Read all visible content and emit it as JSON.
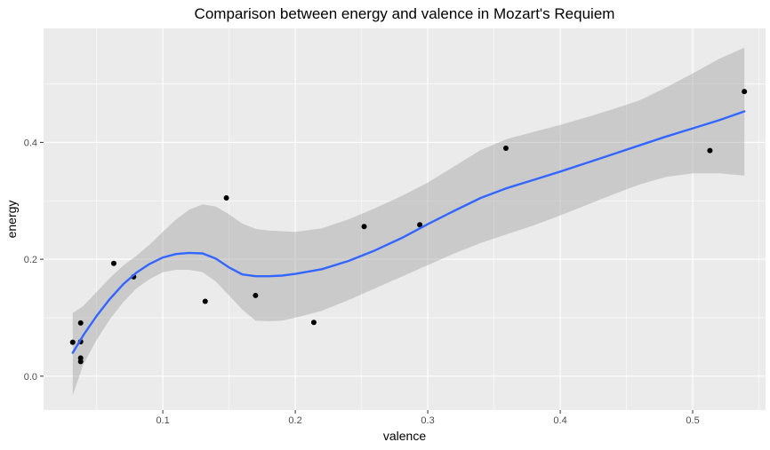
{
  "chart_data": {
    "type": "scatter",
    "title": "Comparison between energy and valence in Mozart's Requiem",
    "xlabel": "valence",
    "ylabel": "energy",
    "xlim": [
      0.01,
      0.555
    ],
    "ylim": [
      -0.058,
      0.595
    ],
    "x_ticks": [
      0.1,
      0.2,
      0.3,
      0.4,
      0.5
    ],
    "x_tick_labels": [
      "0.1",
      "0.2",
      "0.3",
      "0.4",
      "0.5"
    ],
    "y_ticks": [
      0.0,
      0.2,
      0.4
    ],
    "y_tick_labels": [
      "0.0",
      "0.2",
      "0.4"
    ],
    "grid": true,
    "colors": {
      "panel_background": "#ebebeb",
      "grid": "#ffffff",
      "points": "#000000",
      "smooth_line": "#3366ff",
      "confidence_band": "#999999"
    },
    "points": [
      {
        "x": 0.032,
        "y": 0.058
      },
      {
        "x": 0.038,
        "y": 0.091
      },
      {
        "x": 0.038,
        "y": 0.059
      },
      {
        "x": 0.038,
        "y": 0.031
      },
      {
        "x": 0.038,
        "y": 0.025
      },
      {
        "x": 0.063,
        "y": 0.193
      },
      {
        "x": 0.078,
        "y": 0.17
      },
      {
        "x": 0.132,
        "y": 0.128
      },
      {
        "x": 0.148,
        "y": 0.305
      },
      {
        "x": 0.17,
        "y": 0.138
      },
      {
        "x": 0.214,
        "y": 0.092
      },
      {
        "x": 0.252,
        "y": 0.256
      },
      {
        "x": 0.294,
        "y": 0.259
      },
      {
        "x": 0.359,
        "y": 0.39
      },
      {
        "x": 0.513,
        "y": 0.386
      },
      {
        "x": 0.539,
        "y": 0.487
      }
    ],
    "smooth": {
      "x": [
        0.032,
        0.04,
        0.05,
        0.06,
        0.07,
        0.08,
        0.09,
        0.1,
        0.11,
        0.12,
        0.13,
        0.14,
        0.15,
        0.16,
        0.17,
        0.18,
        0.19,
        0.2,
        0.22,
        0.24,
        0.26,
        0.28,
        0.3,
        0.32,
        0.34,
        0.36,
        0.38,
        0.4,
        0.42,
        0.44,
        0.46,
        0.48,
        0.5,
        0.52,
        0.539
      ],
      "y": [
        0.04,
        0.07,
        0.103,
        0.132,
        0.157,
        0.177,
        0.192,
        0.203,
        0.209,
        0.211,
        0.21,
        0.201,
        0.186,
        0.174,
        0.171,
        0.171,
        0.172,
        0.175,
        0.183,
        0.197,
        0.215,
        0.236,
        0.26,
        0.283,
        0.305,
        0.322,
        0.336,
        0.35,
        0.365,
        0.38,
        0.395,
        0.41,
        0.424,
        0.438,
        0.453
      ],
      "lower": [
        -0.033,
        0.02,
        0.062,
        0.097,
        0.126,
        0.15,
        0.166,
        0.178,
        0.182,
        0.182,
        0.178,
        0.162,
        0.138,
        0.114,
        0.095,
        0.094,
        0.095,
        0.1,
        0.112,
        0.13,
        0.15,
        0.17,
        0.19,
        0.21,
        0.228,
        0.243,
        0.258,
        0.275,
        0.293,
        0.311,
        0.328,
        0.341,
        0.347,
        0.347,
        0.343
      ],
      "upper": [
        0.108,
        0.12,
        0.144,
        0.168,
        0.189,
        0.206,
        0.225,
        0.247,
        0.268,
        0.285,
        0.294,
        0.29,
        0.277,
        0.261,
        0.252,
        0.249,
        0.248,
        0.247,
        0.253,
        0.268,
        0.287,
        0.308,
        0.331,
        0.359,
        0.387,
        0.406,
        0.418,
        0.43,
        0.443,
        0.457,
        0.472,
        0.494,
        0.518,
        0.543,
        0.562
      ]
    }
  }
}
